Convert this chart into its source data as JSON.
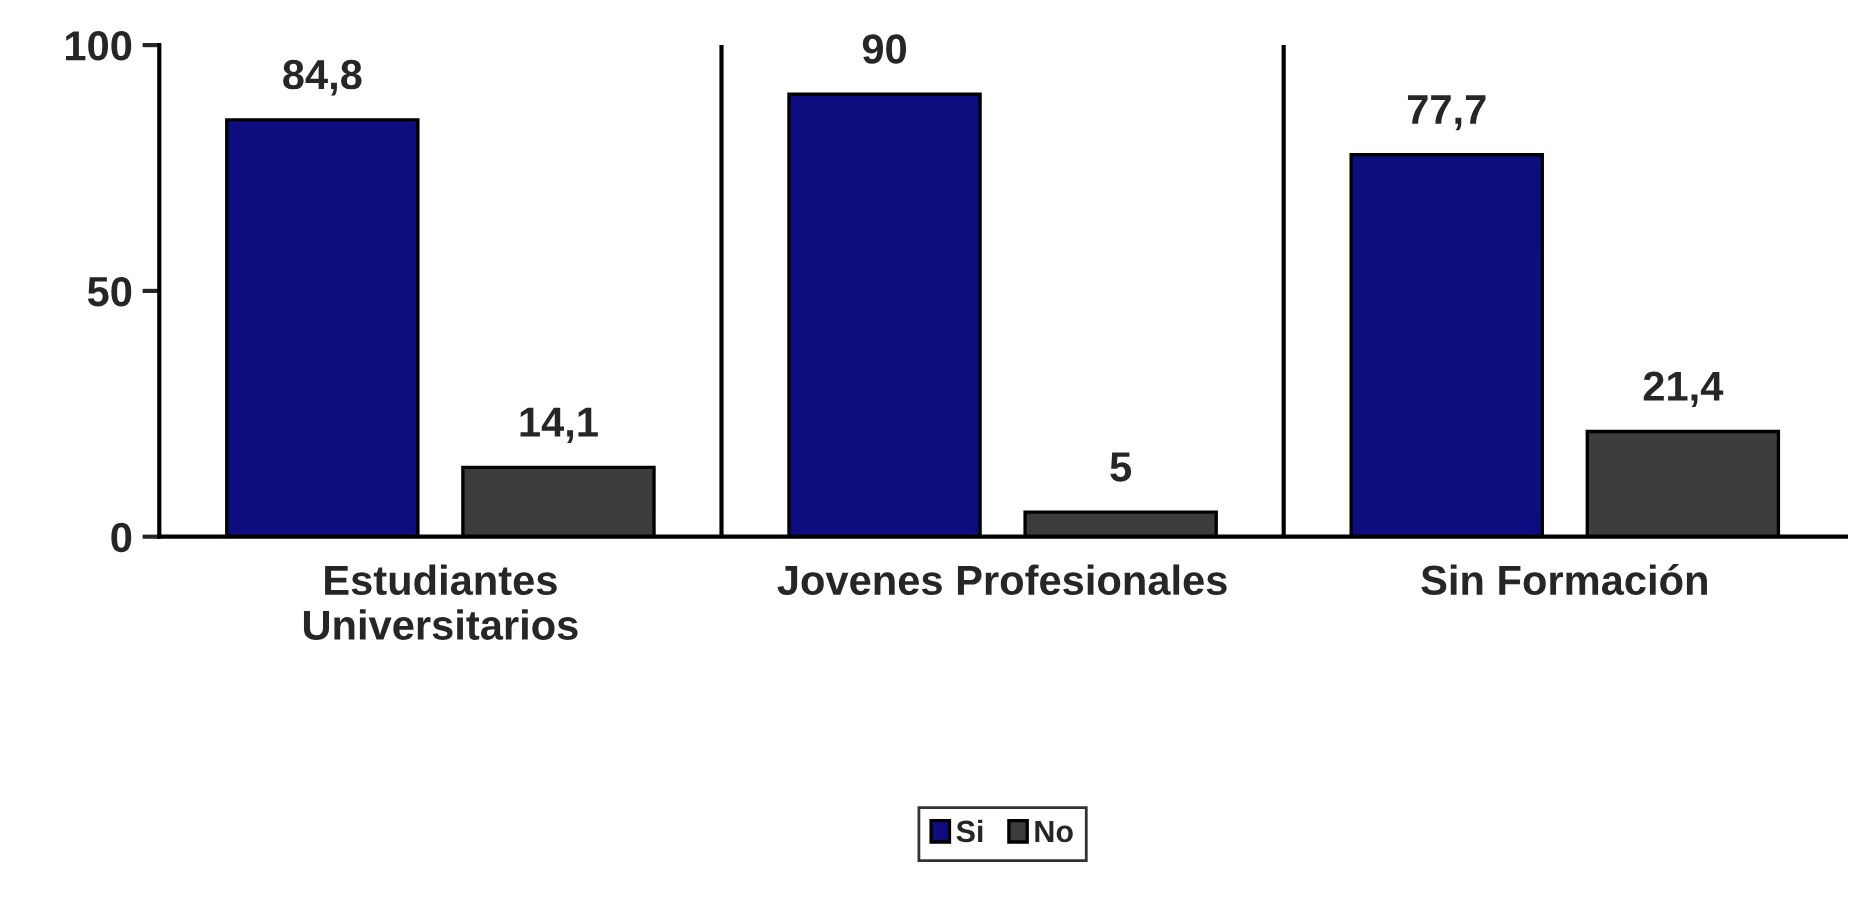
{
  "chart_data": {
    "type": "bar",
    "categories": [
      "Estudiantes\nUniversitarios",
      "Jovenes Profesionales",
      "Sin Formación"
    ],
    "series": [
      {
        "name": "Si",
        "color": "#0d0d80",
        "values": [
          84.8,
          90,
          77.7
        ],
        "value_labels": [
          "84,8",
          "90",
          "77,7"
        ]
      },
      {
        "name": "No",
        "color": "#3c3c3c",
        "values": [
          14.1,
          5,
          21.4
        ],
        "value_labels": [
          "14,1",
          "5",
          "21,4"
        ]
      }
    ],
    "ylim": [
      0,
      100
    ],
    "yticks": [
      0,
      50,
      100
    ],
    "grid": "x",
    "legend": "bottom"
  }
}
